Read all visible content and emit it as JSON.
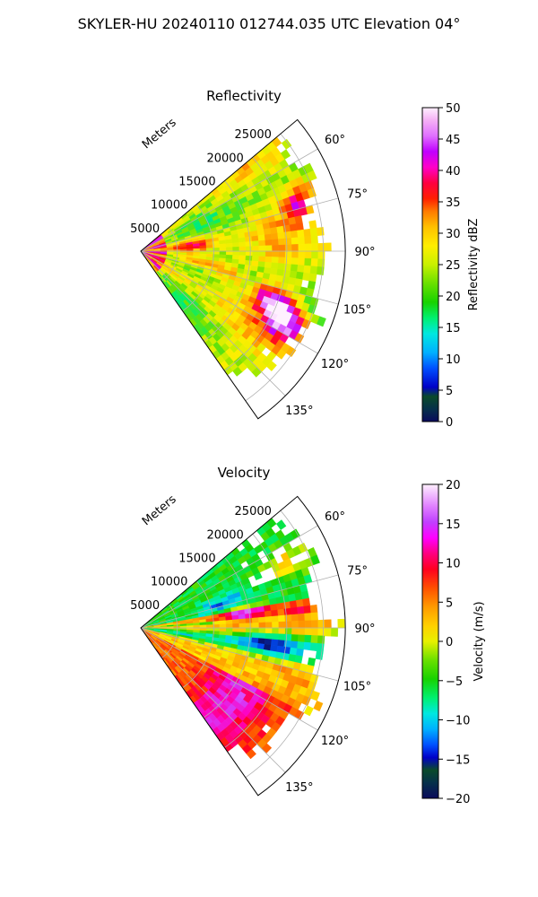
{
  "suptitle": "SKYLER-HU  20240110  012744.035 UTC Elevation 04°",
  "colors": {
    "text": "#000000",
    "grid": "#b0b0b0",
    "background": "#ffffff"
  },
  "chart_data": [
    {
      "type": "heatmap",
      "subtype": "radar-ppi-sector",
      "title": "Reflectivity",
      "range_label": "Meters",
      "range_ticks": [
        5000,
        10000,
        15000,
        20000,
        25000
      ],
      "range_tick_labels": [
        "5000",
        "10000",
        "15000",
        "20000",
        "25000"
      ],
      "range_max": 28000,
      "azimuth_range_deg": [
        50,
        145
      ],
      "azimuth_ticks": [
        60,
        75,
        90,
        105,
        120,
        135
      ],
      "azimuth_tick_labels": [
        "60°",
        "75°",
        "90°",
        "105°",
        "120°",
        "135°"
      ],
      "grid": true,
      "colorbar": {
        "label": "Reflectivity dBZ",
        "range": [
          0,
          50
        ],
        "ticks": [
          0,
          5,
          10,
          15,
          20,
          25,
          30,
          35,
          40,
          45,
          50
        ],
        "tick_labels": [
          "0",
          "5",
          "10",
          "15",
          "20",
          "25",
          "30",
          "35",
          "40",
          "45",
          "50"
        ]
      },
      "features": [
        {
          "az": 84,
          "r": 7000,
          "value": 38
        },
        {
          "az": 100,
          "r": 8000,
          "value": 37
        },
        {
          "az": 104,
          "r": 12000,
          "value": 36
        },
        {
          "az": 110,
          "r": 19000,
          "value": 42
        },
        {
          "az": 114,
          "r": 21000,
          "value": 40
        },
        {
          "az": 118,
          "r": 23000,
          "value": 37
        },
        {
          "az": 74,
          "r": 22000,
          "value": 36
        },
        {
          "az": 70,
          "r": 24000,
          "value": 34
        },
        {
          "az": 88,
          "r": 15000,
          "value": 22
        },
        {
          "az": 64,
          "r": 20000,
          "value": 21
        }
      ]
    },
    {
      "type": "heatmap",
      "subtype": "radar-ppi-sector",
      "title": "Velocity",
      "range_label": "Meters",
      "range_ticks": [
        5000,
        10000,
        15000,
        20000,
        25000
      ],
      "range_tick_labels": [
        "5000",
        "10000",
        "15000",
        "20000",
        "25000"
      ],
      "range_max": 28000,
      "azimuth_range_deg": [
        50,
        145
      ],
      "azimuth_ticks": [
        60,
        75,
        90,
        105,
        120,
        135
      ],
      "azimuth_tick_labels": [
        "60°",
        "75°",
        "90°",
        "105°",
        "120°",
        "135°"
      ],
      "grid": true,
      "colorbar": {
        "label": "Velocity (m/s)",
        "range": [
          -20,
          20
        ],
        "ticks": [
          -20,
          -15,
          -10,
          -5,
          0,
          5,
          10,
          15,
          20
        ],
        "tick_labels": [
          "−20",
          "−15",
          "−10",
          "−5",
          "0",
          "5",
          "10",
          "15",
          "20"
        ]
      },
      "features": [
        {
          "az": 82,
          "r": 14000,
          "value": 15
        },
        {
          "az": 97,
          "r": 18000,
          "value": -11
        },
        {
          "az": 122,
          "r": 20000,
          "value": 16
        },
        {
          "az": 128,
          "r": 13000,
          "value": 9
        },
        {
          "az": 74,
          "r": 12000,
          "value": -10
        },
        {
          "az": 66,
          "r": 22000,
          "value": 8
        },
        {
          "az": 85,
          "r": 22000,
          "value": 8
        },
        {
          "az": 106,
          "r": 22000,
          "value": 3
        }
      ]
    }
  ]
}
